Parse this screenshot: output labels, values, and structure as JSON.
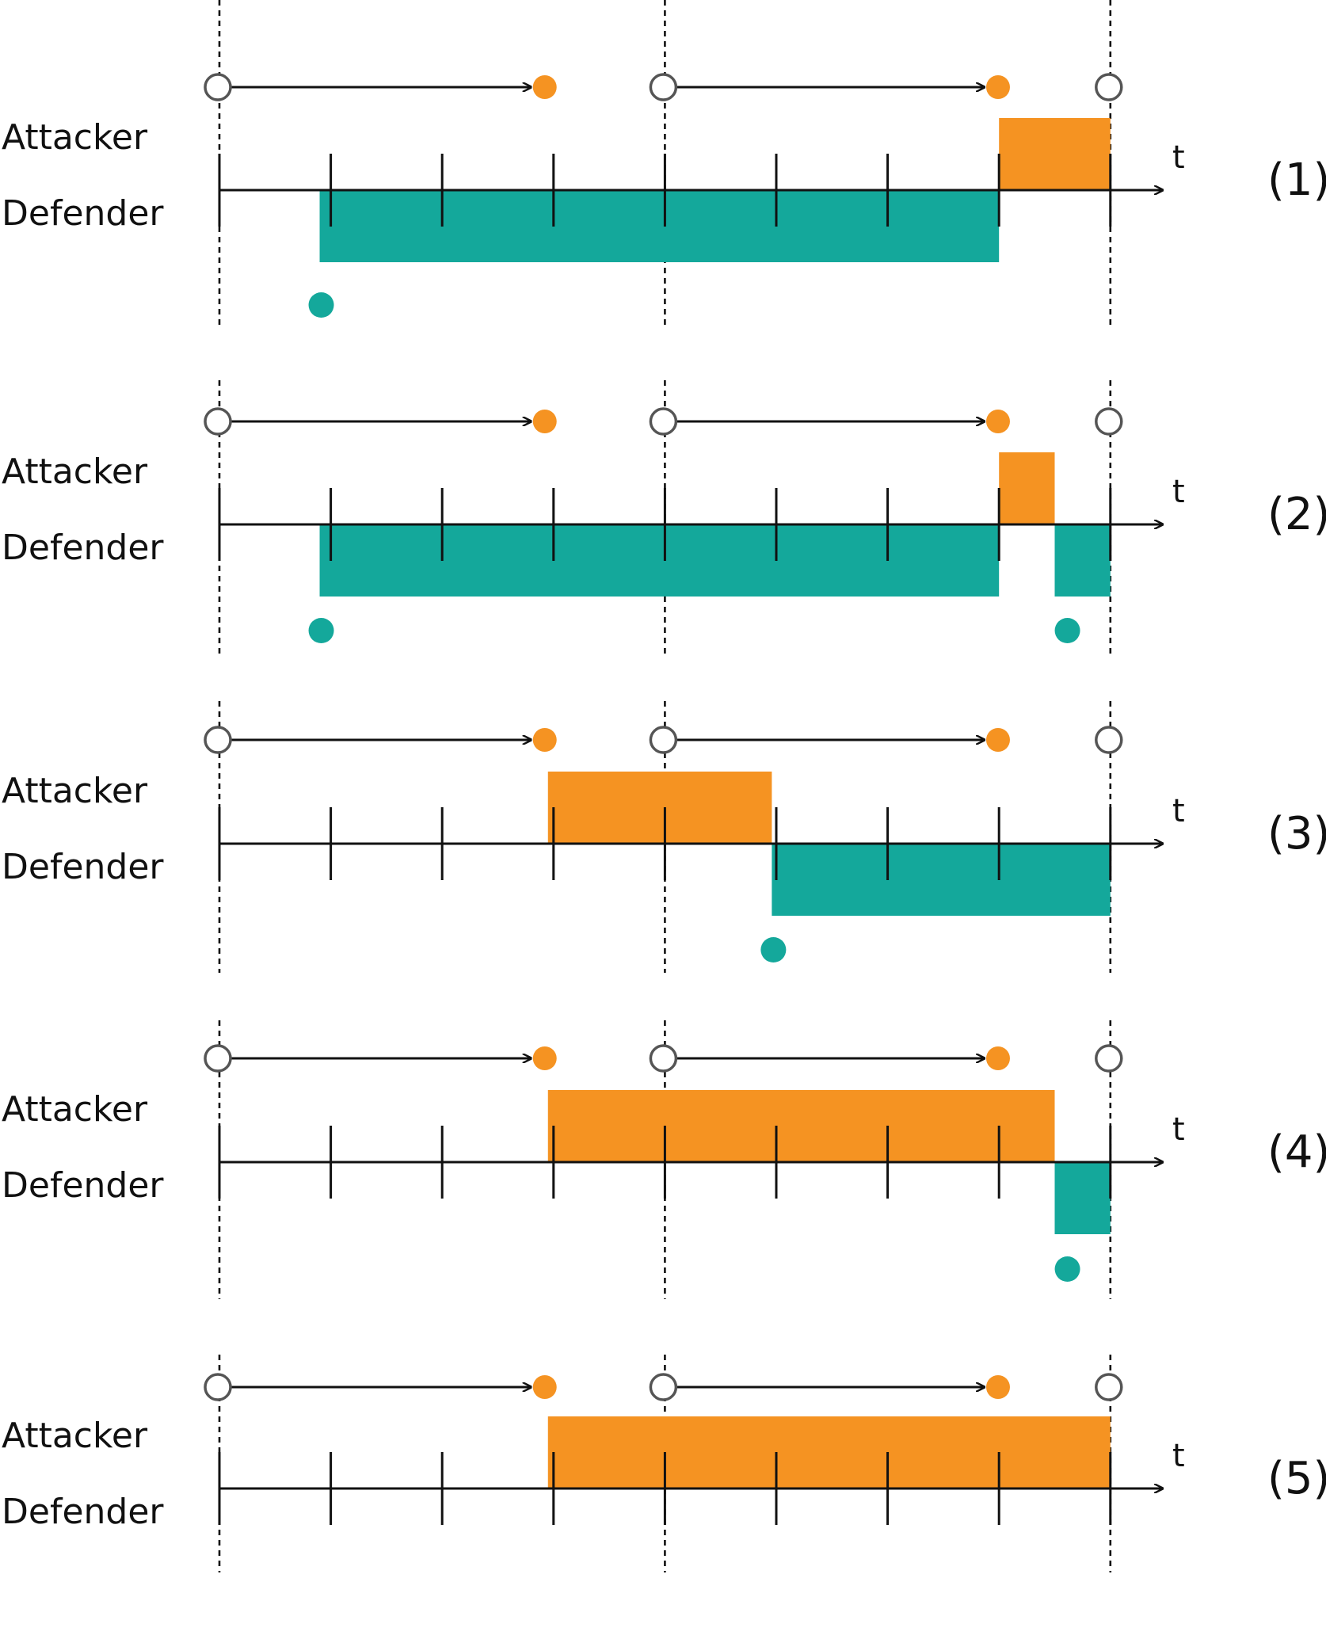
{
  "labels": {
    "attacker": "Attacker",
    "defender": "Defender",
    "time_axis": "t"
  },
  "colors": {
    "attacker": "#F59322",
    "defender": "#14A89B",
    "axis": "#111111",
    "period_marker": "#555555"
  },
  "time_axis": {
    "tick_times": [
      1,
      2,
      3,
      4,
      5,
      6,
      7,
      8
    ],
    "period_boundaries": [
      0,
      4,
      8
    ],
    "start": 0,
    "end": 8
  },
  "panels": [
    {
      "label": "(1)",
      "attacker_bars": [
        {
          "start": 7,
          "end": 8
        }
      ],
      "defender_bars": [
        {
          "start": 0.9,
          "end": 7
        }
      ],
      "attacker_moves": [
        {
          "from": 0,
          "to": 2.9
        },
        {
          "from": 3.94,
          "to": 6.97
        }
      ],
      "defender_moves": [
        0.9
      ]
    },
    {
      "label": "(2)",
      "attacker_bars": [
        {
          "start": 7,
          "end": 7.5
        }
      ],
      "defender_bars": [
        {
          "start": 0.9,
          "end": 7
        },
        {
          "start": 7.5,
          "end": 8
        }
      ],
      "attacker_moves": [
        {
          "from": 0,
          "to": 2.9
        },
        {
          "from": 3.94,
          "to": 6.97
        }
      ],
      "defender_moves": [
        0.9,
        7.6
      ]
    },
    {
      "label": "(3)",
      "attacker_bars": [
        {
          "start": 2.95,
          "end": 4.96
        }
      ],
      "defender_bars": [
        {
          "start": 4.96,
          "end": 8
        }
      ],
      "attacker_moves": [
        {
          "from": 0,
          "to": 2.9
        },
        {
          "from": 3.94,
          "to": 6.97
        }
      ],
      "defender_moves": [
        4.96
      ]
    },
    {
      "label": "(4)",
      "attacker_bars": [
        {
          "start": 2.95,
          "end": 7.5
        }
      ],
      "defender_bars": [
        {
          "start": 7.5,
          "end": 8
        }
      ],
      "attacker_moves": [
        {
          "from": 0,
          "to": 2.9
        },
        {
          "from": 3.94,
          "to": 6.97
        }
      ],
      "defender_moves": [
        7.6
      ]
    },
    {
      "label": "(5)",
      "attacker_bars": [
        {
          "start": 2.95,
          "end": 8
        }
      ],
      "defender_bars": [],
      "attacker_moves": [
        {
          "from": 0,
          "to": 2.9
        },
        {
          "from": 3.94,
          "to": 6.97
        }
      ],
      "defender_moves": []
    }
  ]
}
